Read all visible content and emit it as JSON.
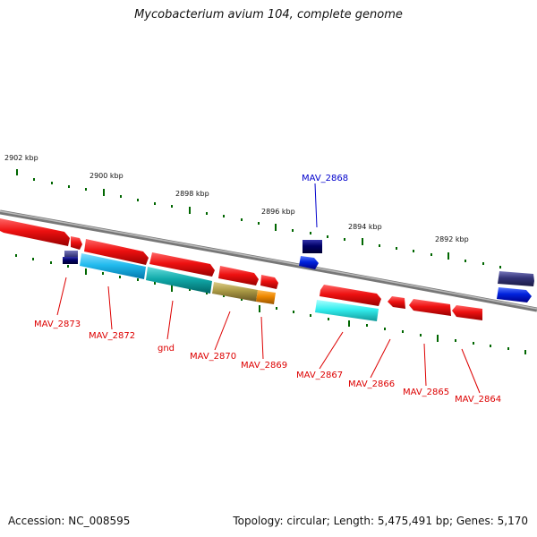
{
  "header": {
    "title": "Mycobacterium avium 104, complete genome"
  },
  "footer": {
    "accession": "Accession: NC_008595",
    "summary": "Topology: circular; Length: 5,475,491 bp; Genes: 5,170"
  },
  "scale": {
    "labels": [
      "2902 kbp",
      "2900 kbp",
      "2898 kbp",
      "2896 kbp",
      "2894 kbp",
      "2892 kbp"
    ]
  },
  "genes": [
    {
      "label": "MAV_2873",
      "color": "#dd0000"
    },
    {
      "label": "MAV_2872",
      "color": "#dd0000"
    },
    {
      "label": "gnd",
      "color": "#dd0000"
    },
    {
      "label": "MAV_2870",
      "color": "#dd0000"
    },
    {
      "label": "MAV_2869",
      "color": "#dd0000"
    },
    {
      "label": "MAV_2868",
      "color": "#0000cc"
    },
    {
      "label": "MAV_2867",
      "color": "#dd0000"
    },
    {
      "label": "MAV_2866",
      "color": "#dd0000"
    },
    {
      "label": "MAV_2865",
      "color": "#dd0000"
    },
    {
      "label": "MAV_2864",
      "color": "#dd0000"
    }
  ],
  "colors": {
    "feature_red": "#ee1111",
    "feature_blue": "#0022dd",
    "feature_navy": "#000066",
    "feature_slate": "#333377",
    "feature_lightblue": "#22bbee",
    "feature_teal": "#11aaaa",
    "feature_olive": "#aa9944",
    "feature_orange": "#ee8800",
    "feature_cyan": "#33eeee",
    "backbone": "#888888",
    "tick": "#006600"
  }
}
